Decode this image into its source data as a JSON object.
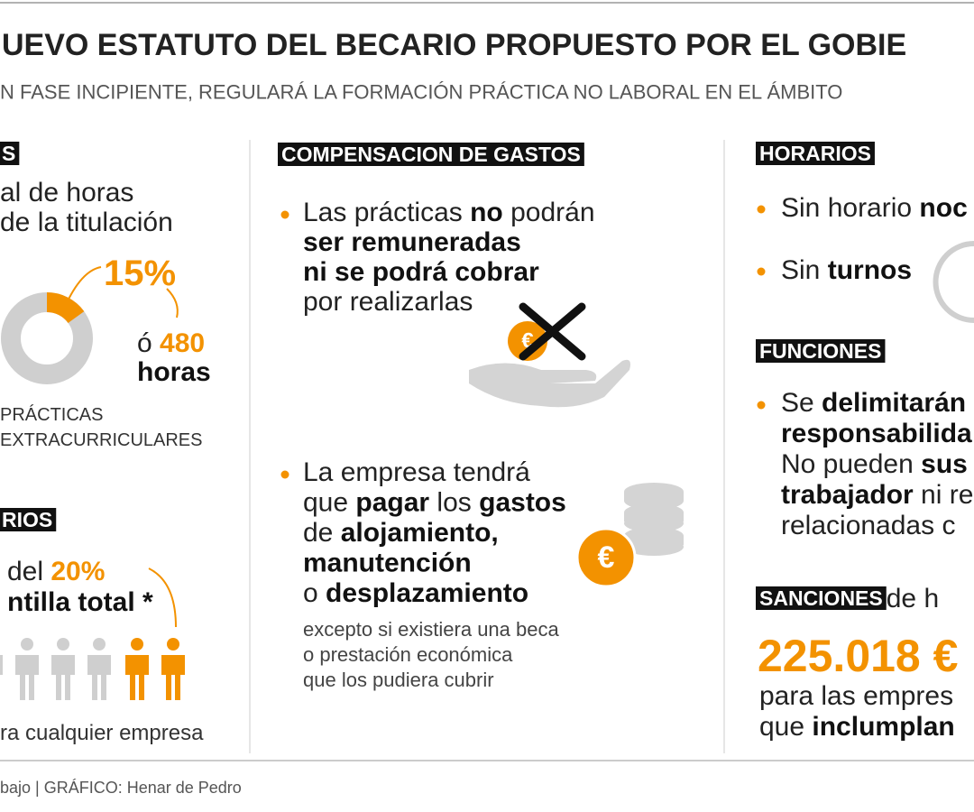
{
  "header": {
    "title": "UEVO ESTATUTO DEL BECARIO PROPUESTO POR EL GOBIE",
    "subtitle": "N FASE INCIPIENTE, REGULARÁ LA FORMACIÓN PRÁCTICA NO LABORAL EN EL ÁMBITO"
  },
  "col1": {
    "label1": "S",
    "text1": [
      [
        "al de horas"
      ],
      [
        "de la titulación"
      ]
    ],
    "percent": "15%",
    "or": [
      [
        "ó ",
        {
          "o": "480"
        }
      ],
      [
        {
          "b": "horas"
        }
      ]
    ],
    "caption": [
      [
        "PRÁCTICAS"
      ],
      [
        "EXTRACURRICULARES"
      ]
    ],
    "label2": "RIOS",
    "text2": [
      [
        "del ",
        {
          "o": "20%"
        }
      ],
      [
        {
          "b": "ntilla total *"
        }
      ]
    ],
    "note": [
      [
        "ra cualquier empresa"
      ]
    ]
  },
  "col2": {
    "label": "COMPENSACION DE GASTOS",
    "bullet1": [
      [
        "Las prácticas ",
        {
          "b": "no"
        },
        " podrán"
      ],
      [
        {
          "b": "ser remuneradas"
        }
      ],
      [
        {
          "b": "ni se podrá cobrar"
        }
      ],
      [
        "por realizarlas"
      ]
    ],
    "bullet2": [
      [
        "La empresa tendrá"
      ],
      [
        "que ",
        {
          "b": "pagar"
        },
        " los ",
        {
          "b": "gastos"
        }
      ],
      [
        "de ",
        {
          "b": "alojamiento,"
        }
      ],
      [
        {
          "b": "manutención"
        }
      ],
      [
        "o ",
        {
          "b": "desplazamiento"
        }
      ]
    ],
    "note": [
      [
        "excepto si existiera una beca"
      ],
      [
        "o prestación económica"
      ],
      [
        "que los pudiera cubrir"
      ]
    ],
    "coin": "€"
  },
  "col3": {
    "label1": "HORARIOS",
    "bullet1": [
      [
        "Sin horario ",
        {
          "b": "noc"
        }
      ]
    ],
    "bullet2": [
      [
        "Sin ",
        {
          "b": "turnos"
        }
      ]
    ],
    "label2": "FUNCIONES",
    "bullet3": [
      [
        "Se ",
        {
          "b": "delimitarán"
        }
      ],
      [
        {
          "b": "responsabilida"
        }
      ],
      [
        "No pueden ",
        {
          "b": "sus"
        }
      ],
      [
        {
          "b": "trabajador"
        },
        " ni re"
      ],
      [
        "relacionadas c"
      ]
    ],
    "label3": "SANCIONES",
    "after_label3": [
      [
        " de h"
      ]
    ],
    "amount": "225.018 €",
    "text": [
      [
        "para las empres"
      ],
      [
        "que ",
        {
          "b": "inclumplan"
        }
      ]
    ]
  },
  "footer": "bajo  |  GRÁFICO: Henar de Pedro"
}
